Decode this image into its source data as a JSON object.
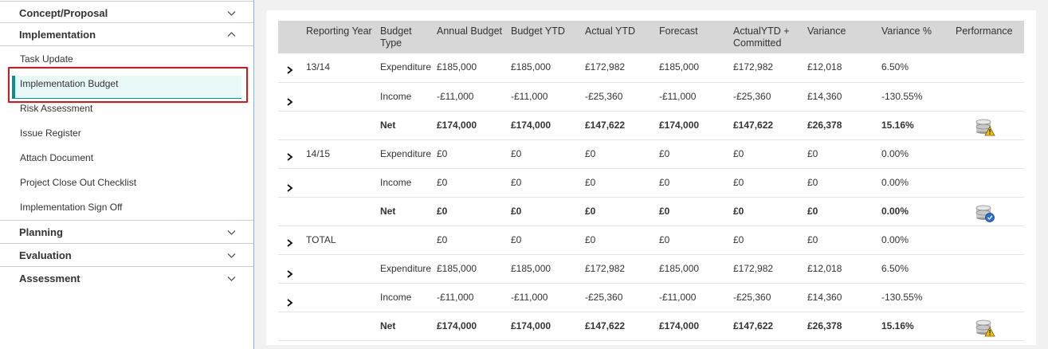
{
  "sidebar": {
    "sections_top": [
      {
        "label": "Concept/Proposal",
        "expanded": false
      }
    ],
    "implementation": {
      "label": "Implementation",
      "expanded": true,
      "items": [
        {
          "label": "Task Update"
        },
        {
          "label": "Implementation Budget",
          "active": true
        },
        {
          "label": "Risk Assessment"
        },
        {
          "label": "Issue Register"
        },
        {
          "label": "Attach Document"
        },
        {
          "label": "Project Close Out Checklist"
        },
        {
          "label": "Implementation Sign Off"
        }
      ]
    },
    "sections_bottom": [
      {
        "label": "Planning"
      },
      {
        "label": "Evaluation"
      },
      {
        "label": "Assessment"
      }
    ]
  },
  "budget_table": {
    "columns": [
      "Reporting Year",
      "Budget Type",
      "Annual Budget",
      "Budget YTD",
      "Actual YTD",
      "Forecast",
      "ActualYTD + Committed",
      "Variance",
      "Variance %",
      "Performance"
    ],
    "rows": [
      {
        "year": "13/14",
        "type": "Expenditure",
        "annual": "£185,000",
        "ytd": "£185,000",
        "actual": "£172,982",
        "forecast": "£185,000",
        "committed": "£172,982",
        "variance": "£12,018",
        "variance_pct": "6.50%",
        "perf": ""
      },
      {
        "year": "",
        "type": "Income",
        "annual": "-£11,000",
        "ytd": "-£11,000",
        "actual": "-£25,360",
        "forecast": "-£11,000",
        "committed": "-£25,360",
        "variance": "£14,360",
        "variance_pct": "-130.55%",
        "perf": ""
      },
      {
        "year": "",
        "type": "Net",
        "annual": "£174,000",
        "ytd": "£174,000",
        "actual": "£147,622",
        "forecast": "£174,000",
        "committed": "£147,622",
        "variance": "£26,378",
        "variance_pct": "15.16%",
        "perf": "database-warning-icon"
      },
      {
        "year": "14/15",
        "type": "Expenditure",
        "annual": "£0",
        "ytd": "£0",
        "actual": "£0",
        "forecast": "£0",
        "committed": "£0",
        "variance": "£0",
        "variance_pct": "0.00%",
        "perf": ""
      },
      {
        "year": "",
        "type": "Income",
        "annual": "£0",
        "ytd": "£0",
        "actual": "£0",
        "forecast": "£0",
        "committed": "£0",
        "variance": "£0",
        "variance_pct": "0.00%",
        "perf": ""
      },
      {
        "year": "",
        "type": "Net",
        "annual": "£0",
        "ytd": "£0",
        "actual": "£0",
        "forecast": "£0",
        "committed": "£0",
        "variance": "£0",
        "variance_pct": "0.00%",
        "perf": "database-ok-icon"
      },
      {
        "year": "TOTAL",
        "type": "",
        "annual": "£0",
        "ytd": "£0",
        "actual": "£0",
        "forecast": "£0",
        "committed": "£0",
        "variance": "£0",
        "variance_pct": "0.00%",
        "perf": ""
      },
      {
        "year": "",
        "type": "Expenditure",
        "annual": "£185,000",
        "ytd": "£185,000",
        "actual": "£172,982",
        "forecast": "£185,000",
        "committed": "£172,982",
        "variance": "£12,018",
        "variance_pct": "6.50%",
        "perf": ""
      },
      {
        "year": "",
        "type": "Income",
        "annual": "-£11,000",
        "ytd": "-£11,000",
        "actual": "-£25,360",
        "forecast": "-£11,000",
        "committed": "-£25,360",
        "variance": "£14,360",
        "variance_pct": "-130.55%",
        "perf": ""
      },
      {
        "year": "",
        "type": "Net",
        "annual": "£174,000",
        "ytd": "£174,000",
        "actual": "£147,622",
        "forecast": "£174,000",
        "committed": "£147,622",
        "variance": "£26,378",
        "variance_pct": "15.16%",
        "perf": "database-warning-icon"
      }
    ]
  },
  "colors": {
    "accent": "#0f8e86",
    "active_bg": "#e8f8f7",
    "focus_ring": "#b0262b",
    "header_bg": "#d7d7d7"
  }
}
